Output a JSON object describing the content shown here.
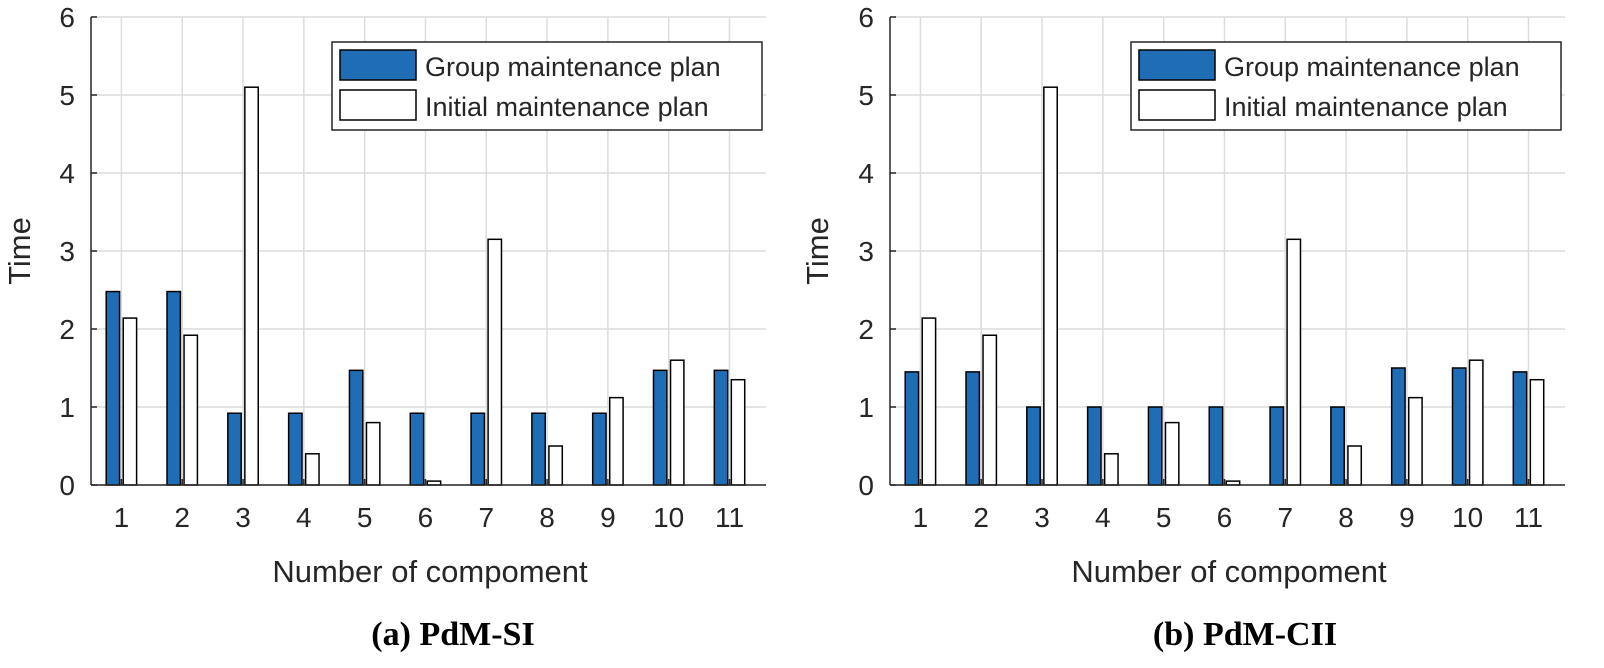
{
  "colors": {
    "group_fill": "#1f6eb5",
    "initial_fill": "#ffffff",
    "bar_stroke": "#000000",
    "grid": "#dcdcdc",
    "axis": "#262626"
  },
  "chart_data": [
    {
      "type": "bar",
      "caption": "(a) PdM-SI",
      "title": "",
      "xlabel": "Number of compoment",
      "ylabel": "Time",
      "ylim": [
        0,
        6
      ],
      "yticks": [
        "0",
        "1",
        "2",
        "3",
        "4",
        "5",
        "6"
      ],
      "grid": true,
      "legend_position": "top-right",
      "categories": [
        "1",
        "2",
        "3",
        "4",
        "5",
        "6",
        "7",
        "8",
        "9",
        "10",
        "11"
      ],
      "series": [
        {
          "name": "Group maintenance plan",
          "values": [
            2.48,
            2.48,
            0.92,
            0.92,
            1.47,
            0.92,
            0.92,
            0.92,
            0.92,
            1.47,
            1.47
          ]
        },
        {
          "name": "Initial maintenance plan",
          "values": [
            2.14,
            1.92,
            5.1,
            0.4,
            0.8,
            0.05,
            3.15,
            0.5,
            1.12,
            1.6,
            1.35
          ]
        }
      ]
    },
    {
      "type": "bar",
      "caption": "(b) PdM-CII",
      "title": "",
      "xlabel": "Number of compoment",
      "ylabel": "Time",
      "ylim": [
        0,
        6
      ],
      "yticks": [
        "0",
        "1",
        "2",
        "3",
        "4",
        "5",
        "6"
      ],
      "grid": true,
      "legend_position": "top-right",
      "categories": [
        "1",
        "2",
        "3",
        "4",
        "5",
        "6",
        "7",
        "8",
        "9",
        "10",
        "11"
      ],
      "series": [
        {
          "name": "Group maintenance plan",
          "values": [
            1.45,
            1.45,
            1.0,
            1.0,
            1.0,
            1.0,
            1.0,
            1.0,
            1.5,
            1.5,
            1.45
          ]
        },
        {
          "name": "Initial maintenance plan",
          "values": [
            2.14,
            1.92,
            5.1,
            0.4,
            0.8,
            0.05,
            3.15,
            0.5,
            1.12,
            1.6,
            1.35
          ]
        }
      ]
    }
  ]
}
